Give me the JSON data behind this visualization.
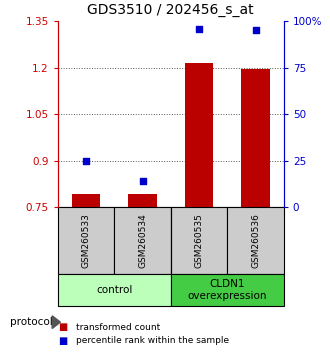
{
  "title": "GDS3510 / 202456_s_at",
  "samples": [
    "GSM260533",
    "GSM260534",
    "GSM260535",
    "GSM260536"
  ],
  "transformed_count": [
    0.792,
    0.793,
    1.215,
    1.195
  ],
  "percentile_rank": [
    25.0,
    14.0,
    96.0,
    95.5
  ],
  "ylim_left": [
    0.75,
    1.35
  ],
  "ylim_right": [
    0,
    100
  ],
  "yticks_left": [
    0.75,
    0.9,
    1.05,
    1.2,
    1.35
  ],
  "yticks_right": [
    0,
    25,
    50,
    75,
    100
  ],
  "ytick_labels_left": [
    "0.75",
    "0.9",
    "1.05",
    "1.2",
    "1.35"
  ],
  "ytick_labels_right": [
    "0",
    "25",
    "50",
    "75",
    "100%"
  ],
  "bar_color": "#bb0000",
  "dot_color": "#0000cc",
  "bar_bottom": 0.75,
  "group_labels": [
    "control",
    "CLDN1\noverexpression"
  ],
  "group_color_light": "#bbffbb",
  "group_color_dark": "#44cc44",
  "protocol_label": "protocol",
  "legend_bar_label": "transformed count",
  "legend_dot_label": "percentile rank within the sample",
  "title_fontsize": 10,
  "axis_color_left": "#cc0000",
  "axis_color_right": "#0000cc",
  "sample_box_color": "#cccccc",
  "grid_color": "#555555",
  "bar_width": 0.5
}
